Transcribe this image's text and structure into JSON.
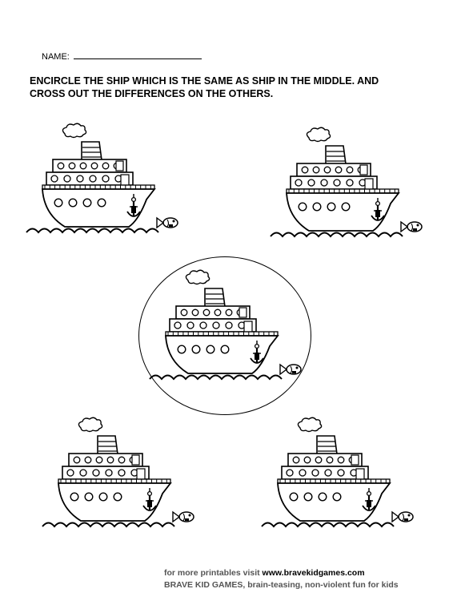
{
  "header": {
    "name_label": "NAME:"
  },
  "instructions": {
    "line1": "ENCIRCLE THE SHIP WHICH IS THE SAME AS SHIP IN THE MIDDLE. AND",
    "line2": "CROSS OUT THE DIFFERENCES ON THE OTHERS."
  },
  "ships": [
    {
      "id": "top-left"
    },
    {
      "id": "top-right"
    },
    {
      "id": "center"
    },
    {
      "id": "bottom-left"
    },
    {
      "id": "bottom-right"
    }
  ],
  "footer": {
    "prefix": "for more printables visit",
    "url": "www.bravekidgames.com",
    "tagline": "BRAVE KID GAMES, brain-teasing, non-violent fun for kids"
  }
}
